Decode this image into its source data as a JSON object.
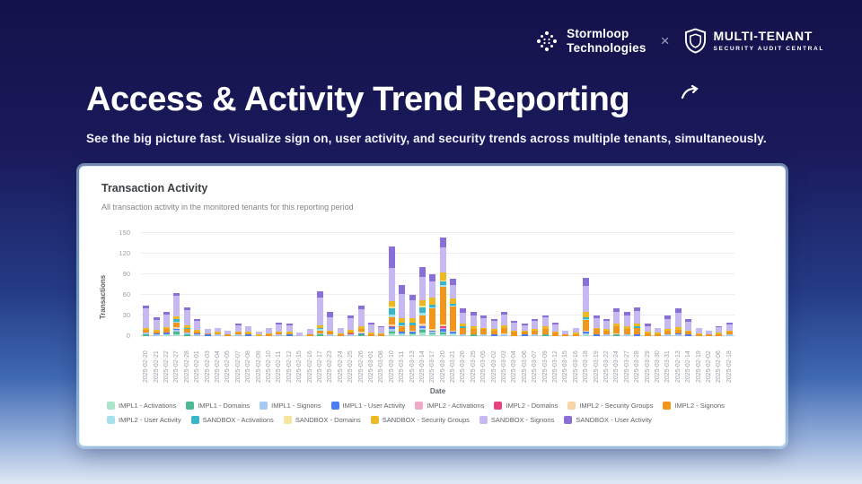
{
  "header": {
    "brand1": {
      "line1": "Stormloop",
      "line2": "Technologies"
    },
    "separator": "×",
    "brand2": {
      "title": "MULTI-TENANT",
      "subtitle": "SECURITY AUDIT CENTRAL"
    }
  },
  "hero": {
    "title": "Access & Activity Trend Reporting",
    "subtitle": "See the big picture fast. Visualize sign on, user activity, and security trends across multiple tenants, simultaneously."
  },
  "card": {
    "title": "Transaction Activity",
    "subtitle": "All transaction activity in the monitored tenants for this reporting period"
  },
  "chart_data": {
    "type": "bar",
    "stacked": true,
    "title": "Transaction Activity",
    "xlabel": "Date",
    "ylabel": "Transactions",
    "ylim": [
      0,
      150
    ],
    "yticks": [
      0,
      30,
      60,
      90,
      120,
      150
    ],
    "grid": true,
    "legend_position": "bottom",
    "categories": [
      "2025-02-20",
      "2025-02-21",
      "2025-02-22",
      "2025-02-27",
      "2025-02-28",
      "2025-02-01",
      "2025-02-03",
      "2025-02-04",
      "2025-02-05",
      "2025-02-07",
      "2025-02-08",
      "2025-02-09",
      "2025-02-10",
      "2025-02-11",
      "2025-02-12",
      "2025-02-15",
      "2025-02-16",
      "2025-02-17",
      "2025-02-23",
      "2025-02-24",
      "2025-02-25",
      "2025-02-26",
      "2025-03-01",
      "2025-03-08",
      "2025-03-10",
      "2025-03-11",
      "2025-03-13",
      "2025-03-14",
      "2025-03-17",
      "2025-03-20",
      "2025-03-21",
      "2025-03-26",
      "2025-03-25",
      "2025-03-05",
      "2025-03-02",
      "2025-03-03",
      "2025-03-04",
      "2025-03-06",
      "2025-03-07",
      "2025-03-09",
      "2025-03-12",
      "2025-03-15",
      "2025-03-16",
      "2025-03-18",
      "2025-03-19",
      "2025-03-22",
      "2025-03-24",
      "2025-03-27",
      "2025-03-28",
      "2025-03-29",
      "2025-03-30",
      "2025-03-31",
      "2025-02-13",
      "2025-02-14",
      "2025-02-19",
      "2025-02-02",
      "2025-02-06",
      "2025-02-18"
    ],
    "series": [
      {
        "name": "IMPL1 - Activations",
        "color": "#a9e5cc",
        "values": [
          0,
          0,
          2,
          3,
          0,
          0,
          0,
          0,
          0,
          0,
          0,
          0,
          0,
          0,
          0,
          0,
          0,
          0,
          0,
          0,
          0,
          0,
          0,
          0,
          4,
          2,
          2,
          5,
          2,
          3,
          2,
          0,
          0,
          0,
          0,
          0,
          0,
          0,
          0,
          0,
          0,
          0,
          0,
          2,
          0,
          0,
          0,
          0,
          0,
          0,
          0,
          0,
          0,
          0,
          0,
          0,
          0,
          0
        ]
      },
      {
        "name": "IMPL1 - Domains",
        "color": "#4eb892",
        "values": [
          3,
          0,
          0,
          4,
          2,
          0,
          0,
          0,
          0,
          0,
          0,
          0,
          0,
          0,
          0,
          0,
          0,
          2,
          0,
          0,
          0,
          2,
          0,
          0,
          3,
          0,
          2,
          4,
          2,
          2,
          0,
          0,
          2,
          0,
          0,
          0,
          0,
          0,
          0,
          2,
          0,
          0,
          0,
          0,
          0,
          0,
          2,
          0,
          0,
          0,
          0,
          0,
          0,
          0,
          0,
          0,
          0,
          0
        ]
      },
      {
        "name": "IMPL1 - Signons",
        "color": "#a6c9f5",
        "values": [
          2,
          2,
          0,
          2,
          3,
          2,
          0,
          2,
          0,
          2,
          0,
          0,
          0,
          2,
          0,
          0,
          0,
          2,
          2,
          0,
          2,
          0,
          0,
          0,
          3,
          2,
          0,
          3,
          2,
          2,
          2,
          2,
          0,
          2,
          0,
          2,
          0,
          0,
          2,
          0,
          0,
          0,
          0,
          2,
          0,
          2,
          0,
          2,
          0,
          0,
          0,
          2,
          2,
          0,
          0,
          0,
          0,
          2
        ]
      },
      {
        "name": "IMPL1 - User Activity",
        "color": "#4d7df2",
        "values": [
          0,
          2,
          3,
          2,
          0,
          2,
          2,
          0,
          0,
          0,
          2,
          0,
          0,
          0,
          2,
          0,
          0,
          0,
          0,
          0,
          0,
          2,
          0,
          0,
          3,
          2,
          2,
          2,
          2,
          3,
          2,
          0,
          0,
          0,
          2,
          0,
          0,
          2,
          0,
          0,
          0,
          0,
          0,
          2,
          2,
          0,
          0,
          0,
          2,
          0,
          0,
          0,
          2,
          2,
          0,
          0,
          0,
          0
        ]
      },
      {
        "name": "IMPL2 - Activations",
        "color": "#f2a9c9",
        "values": [
          0,
          0,
          0,
          0,
          0,
          0,
          0,
          0,
          0,
          0,
          0,
          0,
          0,
          0,
          0,
          0,
          0,
          0,
          0,
          0,
          0,
          0,
          0,
          0,
          0,
          0,
          0,
          2,
          0,
          2,
          0,
          0,
          0,
          0,
          0,
          0,
          0,
          0,
          0,
          0,
          0,
          0,
          0,
          0,
          0,
          0,
          0,
          0,
          0,
          0,
          0,
          0,
          0,
          0,
          0,
          0,
          0,
          0
        ]
      },
      {
        "name": "IMPL2 - Domains",
        "color": "#e4447e",
        "values": [
          0,
          0,
          0,
          0,
          0,
          0,
          0,
          0,
          0,
          0,
          0,
          0,
          0,
          0,
          0,
          0,
          0,
          0,
          0,
          0,
          2,
          0,
          0,
          0,
          2,
          0,
          0,
          0,
          0,
          2,
          0,
          0,
          0,
          0,
          0,
          0,
          0,
          0,
          0,
          0,
          0,
          0,
          0,
          0,
          0,
          0,
          0,
          0,
          0,
          0,
          0,
          0,
          0,
          0,
          0,
          0,
          0,
          0
        ]
      },
      {
        "name": "IMPL2 - Security Groups",
        "color": "#f5d6a4",
        "values": [
          0,
          0,
          0,
          2,
          0,
          0,
          0,
          0,
          0,
          0,
          0,
          0,
          0,
          0,
          0,
          0,
          0,
          0,
          0,
          0,
          0,
          2,
          0,
          0,
          2,
          0,
          2,
          2,
          2,
          3,
          2,
          0,
          0,
          0,
          0,
          2,
          0,
          0,
          0,
          0,
          0,
          0,
          0,
          2,
          0,
          0,
          2,
          0,
          0,
          0,
          0,
          0,
          0,
          0,
          0,
          0,
          0,
          0
        ]
      },
      {
        "name": "IMPL2 - Signons",
        "color": "#f2951c",
        "values": [
          4,
          3,
          5,
          6,
          5,
          3,
          2,
          2,
          2,
          3,
          2,
          0,
          2,
          3,
          2,
          0,
          2,
          4,
          4,
          2,
          3,
          5,
          3,
          2,
          10,
          8,
          8,
          12,
          30,
          55,
          35,
          10,
          8,
          8,
          6,
          8,
          6,
          4,
          6,
          8,
          5,
          2,
          3,
          15,
          8,
          6,
          10,
          8,
          10,
          4,
          3,
          6,
          5,
          4,
          2,
          2,
          3,
          4
        ]
      },
      {
        "name": "IMPL2 - User Activity",
        "color": "#a5e2ee",
        "values": [
          0,
          0,
          0,
          2,
          0,
          0,
          0,
          0,
          0,
          0,
          0,
          0,
          0,
          0,
          0,
          0,
          0,
          2,
          0,
          0,
          0,
          0,
          0,
          0,
          4,
          2,
          0,
          4,
          2,
          3,
          2,
          0,
          0,
          0,
          0,
          0,
          0,
          0,
          0,
          0,
          0,
          0,
          0,
          2,
          0,
          0,
          0,
          0,
          0,
          0,
          0,
          0,
          0,
          0,
          0,
          0,
          0,
          0
        ]
      },
      {
        "name": "SANDBOX - Activations",
        "color": "#38b6c9",
        "values": [
          0,
          0,
          0,
          4,
          2,
          0,
          0,
          0,
          0,
          0,
          0,
          0,
          0,
          0,
          0,
          0,
          0,
          2,
          0,
          0,
          0,
          0,
          0,
          0,
          10,
          4,
          4,
          8,
          4,
          4,
          2,
          2,
          0,
          0,
          0,
          0,
          0,
          0,
          0,
          0,
          0,
          0,
          0,
          2,
          0,
          0,
          0,
          0,
          2,
          0,
          0,
          0,
          0,
          0,
          0,
          0,
          0,
          0
        ]
      },
      {
        "name": "SANDBOX - Domains",
        "color": "#f7e49f",
        "values": [
          0,
          0,
          0,
          0,
          0,
          0,
          0,
          0,
          0,
          0,
          0,
          0,
          0,
          0,
          0,
          0,
          0,
          0,
          0,
          0,
          0,
          0,
          0,
          0,
          2,
          0,
          0,
          2,
          0,
          2,
          0,
          0,
          0,
          0,
          0,
          0,
          0,
          0,
          0,
          0,
          0,
          0,
          0,
          0,
          0,
          0,
          0,
          0,
          0,
          0,
          0,
          0,
          0,
          0,
          0,
          0,
          0,
          0
        ]
      },
      {
        "name": "SANDBOX - Security Groups",
        "color": "#eeb822",
        "values": [
          3,
          2,
          3,
          4,
          4,
          2,
          0,
          2,
          0,
          2,
          2,
          2,
          2,
          2,
          2,
          0,
          0,
          4,
          2,
          2,
          2,
          4,
          2,
          2,
          8,
          6,
          6,
          8,
          10,
          12,
          8,
          4,
          4,
          2,
          2,
          4,
          2,
          2,
          2,
          4,
          2,
          0,
          2,
          8,
          2,
          2,
          4,
          4,
          4,
          2,
          2,
          2,
          4,
          2,
          2,
          0,
          2,
          2
        ]
      },
      {
        "name": "SANDBOX - Signons",
        "color": "#c6b8f0",
        "values": [
          28,
          15,
          18,
          30,
          22,
          13,
          6,
          6,
          6,
          9,
          9,
          4,
          8,
          10,
          10,
          5,
          8,
          40,
          20,
          8,
          17,
          24,
          12,
          9,
          48,
          35,
          26,
          34,
          24,
          36,
          20,
          16,
          16,
          14,
          12,
          15,
          11,
          8,
          12,
          13,
          10,
          6,
          7,
          38,
          14,
          12,
          17,
          16,
          18,
          9,
          7,
          15,
          21,
          13,
          8,
          6,
          8,
          9
        ]
      },
      {
        "name": "SANDBOX - User Activity",
        "color": "#8a6fd6",
        "values": [
          5,
          3,
          4,
          4,
          4,
          3,
          0,
          0,
          0,
          2,
          0,
          0,
          0,
          3,
          2,
          0,
          0,
          9,
          7,
          0,
          4,
          6,
          3,
          2,
          31,
          14,
          8,
          14,
          10,
          14,
          8,
          6,
          5,
          4,
          3,
          4,
          3,
          2,
          3,
          3,
          3,
          0,
          0,
          12,
          4,
          3,
          5,
          5,
          6,
          3,
          0,
          5,
          6,
          4,
          0,
          0,
          2,
          3
        ]
      }
    ]
  }
}
